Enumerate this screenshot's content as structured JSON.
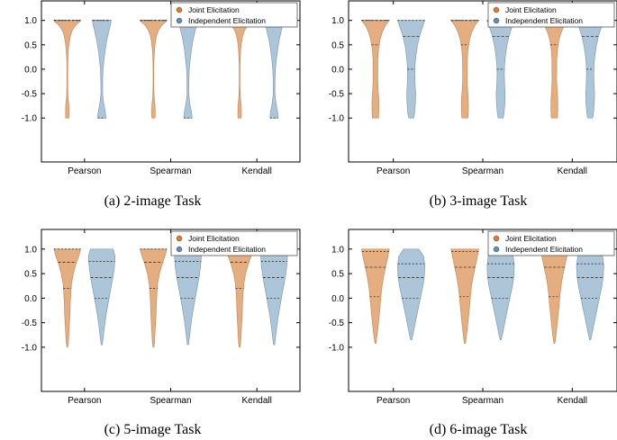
{
  "colors": {
    "joint": "#e3aa79",
    "joint_stroke": "#c98a5a",
    "joint_marker": "#e07a30",
    "independent": "#a9c2d6",
    "independent_stroke": "#7f9db5",
    "independent_marker": "#5f8db5",
    "axis": "#000000"
  },
  "legend": {
    "joint": "Joint Elicitation",
    "independent": "Independent Elicitation"
  },
  "chart_data": [
    {
      "type": "violin",
      "caption": "(a) 2-image Task",
      "categories": [
        "Pearson",
        "Spearman",
        "Kendall"
      ],
      "yticks": [
        "1.0",
        "0.5",
        "0.0",
        "-0.5",
        "-1.0"
      ],
      "ylim": [
        -1.9,
        1.4
      ],
      "series": [
        {
          "name": "Joint Elicitation",
          "key": "joint",
          "range": [
            -1.0,
            1.0
          ],
          "profile": [
            [
              1.0,
              1.0
            ],
            [
              0.97,
              0.92
            ],
            [
              0.9,
              0.62
            ],
            [
              0.8,
              0.38
            ],
            [
              0.7,
              0.24
            ],
            [
              0.55,
              0.14
            ],
            [
              0.4,
              0.08
            ],
            [
              0.2,
              0.04
            ],
            [
              0.0,
              0.025
            ],
            [
              -0.3,
              0.025
            ],
            [
              -0.55,
              0.05
            ],
            [
              -0.75,
              0.12
            ],
            [
              -0.9,
              0.13
            ],
            [
              -1.0,
              0.12
            ]
          ],
          "quartiles": [
            1.0,
            1.0,
            1.0
          ]
        },
        {
          "name": "Independent Elicitation",
          "key": "independent",
          "range": [
            -1.0,
            1.0
          ],
          "profile": [
            [
              1.0,
              0.7
            ],
            [
              0.92,
              0.66
            ],
            [
              0.8,
              0.55
            ],
            [
              0.6,
              0.38
            ],
            [
              0.4,
              0.26
            ],
            [
              0.2,
              0.17
            ],
            [
              0.0,
              0.1
            ],
            [
              -0.2,
              0.07
            ],
            [
              -0.5,
              0.06
            ],
            [
              -0.7,
              0.14
            ],
            [
              -0.85,
              0.25
            ],
            [
              -0.95,
              0.3
            ],
            [
              -1.0,
              0.3
            ]
          ],
          "quartiles": [
            -1.0,
            1.0,
            1.0
          ]
        }
      ]
    },
    {
      "type": "violin",
      "caption": "(b) 3-image Task",
      "categories": [
        "Pearson",
        "Spearman",
        "Kendall"
      ],
      "yticks": [
        "1.0",
        "0.5",
        "0.0",
        "-0.5",
        "-1.0"
      ],
      "ylim": [
        -1.9,
        1.4
      ],
      "series": [
        {
          "name": "Joint Elicitation",
          "key": "joint",
          "range": [
            -1.0,
            1.0
          ],
          "profile": [
            [
              1.0,
              1.0
            ],
            [
              0.9,
              0.72
            ],
            [
              0.75,
              0.48
            ],
            [
              0.6,
              0.33
            ],
            [
              0.4,
              0.22
            ],
            [
              0.2,
              0.17
            ],
            [
              0.0,
              0.17
            ],
            [
              -0.2,
              0.16
            ],
            [
              -0.4,
              0.19
            ],
            [
              -0.6,
              0.24
            ],
            [
              -0.8,
              0.25
            ],
            [
              -1.0,
              0.22
            ]
          ],
          "quartiles": [
            0.5,
            1.0,
            1.0
          ]
        },
        {
          "name": "Independent Elicitation",
          "key": "independent",
          "range": [
            -1.0,
            1.0
          ],
          "profile": [
            [
              1.0,
              0.98
            ],
            [
              0.85,
              0.8
            ],
            [
              0.7,
              0.62
            ],
            [
              0.5,
              0.46
            ],
            [
              0.3,
              0.35
            ],
            [
              0.1,
              0.28
            ],
            [
              -0.1,
              0.26
            ],
            [
              -0.3,
              0.28
            ],
            [
              -0.5,
              0.32
            ],
            [
              -0.7,
              0.3
            ],
            [
              -0.9,
              0.24
            ],
            [
              -1.0,
              0.18
            ]
          ],
          "quartiles": [
            0.0,
            0.67,
            1.0
          ]
        }
      ]
    },
    {
      "type": "violin",
      "caption": "(c) 5-image Task",
      "categories": [
        "Pearson",
        "Spearman",
        "Kendall"
      ],
      "yticks": [
        "1.0",
        "0.5",
        "0.0",
        "-0.5",
        "-1.0"
      ],
      "ylim": [
        -1.9,
        1.4
      ],
      "series": [
        {
          "name": "Joint Elicitation",
          "key": "joint",
          "range": [
            -1.0,
            1.0
          ],
          "profile": [
            [
              1.0,
              1.0
            ],
            [
              0.85,
              0.85
            ],
            [
              0.7,
              0.65
            ],
            [
              0.5,
              0.45
            ],
            [
              0.3,
              0.32
            ],
            [
              0.1,
              0.26
            ],
            [
              -0.1,
              0.22
            ],
            [
              -0.3,
              0.2
            ],
            [
              -0.5,
              0.16
            ],
            [
              -0.7,
              0.12
            ],
            [
              -0.9,
              0.08
            ],
            [
              -1.0,
              0.03
            ]
          ],
          "quartiles": [
            0.2,
            0.73,
            1.0
          ]
        },
        {
          "name": "Independent Elicitation",
          "key": "independent",
          "range": [
            -0.95,
            1.0
          ],
          "profile": [
            [
              1.0,
              0.85
            ],
            [
              0.85,
              1.0
            ],
            [
              0.65,
              0.95
            ],
            [
              0.45,
              0.85
            ],
            [
              0.25,
              0.72
            ],
            [
              0.05,
              0.58
            ],
            [
              -0.15,
              0.45
            ],
            [
              -0.35,
              0.32
            ],
            [
              -0.55,
              0.22
            ],
            [
              -0.75,
              0.13
            ],
            [
              -0.95,
              0.04
            ]
          ],
          "quartiles": [
            0.0,
            0.42,
            0.75
          ]
        }
      ]
    },
    {
      "type": "violin",
      "caption": "(d) 6-image Task",
      "categories": [
        "Pearson",
        "Spearman",
        "Kendall"
      ],
      "yticks": [
        "1.0",
        "0.5",
        "0.0",
        "-0.5",
        "-1.0"
      ],
      "ylim": [
        -1.9,
        1.4
      ],
      "series": [
        {
          "name": "Joint Elicitation",
          "key": "joint",
          "range": [
            -0.92,
            1.0
          ],
          "profile": [
            [
              1.0,
              1.0
            ],
            [
              0.85,
              0.9
            ],
            [
              0.65,
              0.75
            ],
            [
              0.45,
              0.6
            ],
            [
              0.25,
              0.48
            ],
            [
              0.05,
              0.4
            ],
            [
              -0.15,
              0.34
            ],
            [
              -0.35,
              0.27
            ],
            [
              -0.55,
              0.2
            ],
            [
              -0.75,
              0.12
            ],
            [
              -0.92,
              0.04
            ]
          ],
          "quartiles": [
            0.03,
            0.63,
            0.95
          ]
        },
        {
          "name": "Independent Elicitation",
          "key": "independent",
          "range": [
            -0.85,
            1.0
          ],
          "profile": [
            [
              1.0,
              0.55
            ],
            [
              0.85,
              0.9
            ],
            [
              0.65,
              0.98
            ],
            [
              0.45,
              0.95
            ],
            [
              0.25,
              0.85
            ],
            [
              0.05,
              0.7
            ],
            [
              -0.15,
              0.55
            ],
            [
              -0.35,
              0.4
            ],
            [
              -0.55,
              0.26
            ],
            [
              -0.75,
              0.12
            ],
            [
              -0.85,
              0.04
            ]
          ],
          "quartiles": [
            0.0,
            0.42,
            0.7
          ]
        }
      ]
    }
  ]
}
